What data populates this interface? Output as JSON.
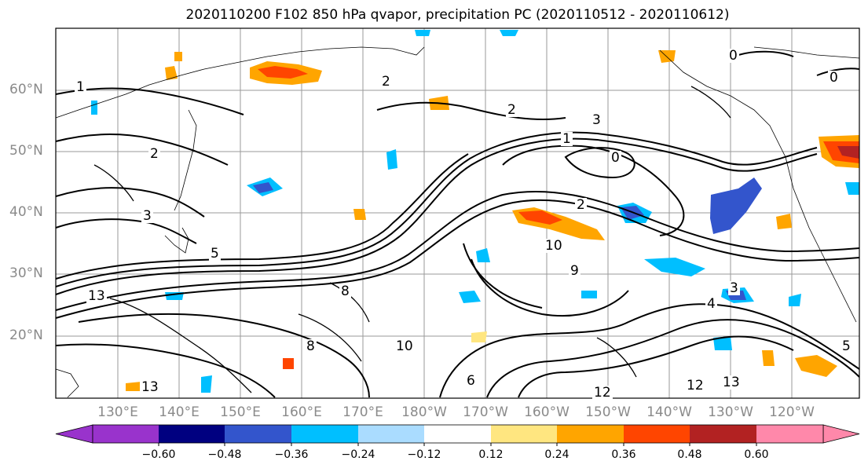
{
  "title": "2020110200 F102 850 hPa qvapor, precipitation PC (2020110512 - 2020110612)",
  "map": {
    "lat_labels": [
      "60°N",
      "50°N",
      "40°N",
      "30°N",
      "20°N"
    ],
    "lon_labels": [
      "130°E",
      "140°E",
      "150°E",
      "160°E",
      "170°E",
      "180°W",
      "170°W",
      "160°W",
      "150°W",
      "140°W",
      "130°W",
      "120°W"
    ],
    "contour_labels": [
      "1",
      "2",
      "3",
      "2",
      "1",
      "3",
      "0",
      "5",
      "13",
      "13",
      "10",
      "10",
      "12",
      "12",
      "13",
      "4",
      "3",
      "5",
      "0",
      "0",
      "2",
      "9",
      "8",
      "6",
      "8",
      "2"
    ]
  },
  "colorbar": {
    "tick_labels": [
      "−0.60",
      "−0.48",
      "−0.36",
      "−0.24",
      "−0.12",
      "0.12",
      "0.24",
      "0.36",
      "0.48",
      "0.60"
    ],
    "colors": [
      "#9933cc",
      "#000080",
      "#3355cc",
      "#00bfff",
      "#aadcff",
      "#ffffff",
      "#ffe680",
      "#ffa500",
      "#ff4500",
      "#b22222",
      "#ff88aa"
    ]
  }
}
